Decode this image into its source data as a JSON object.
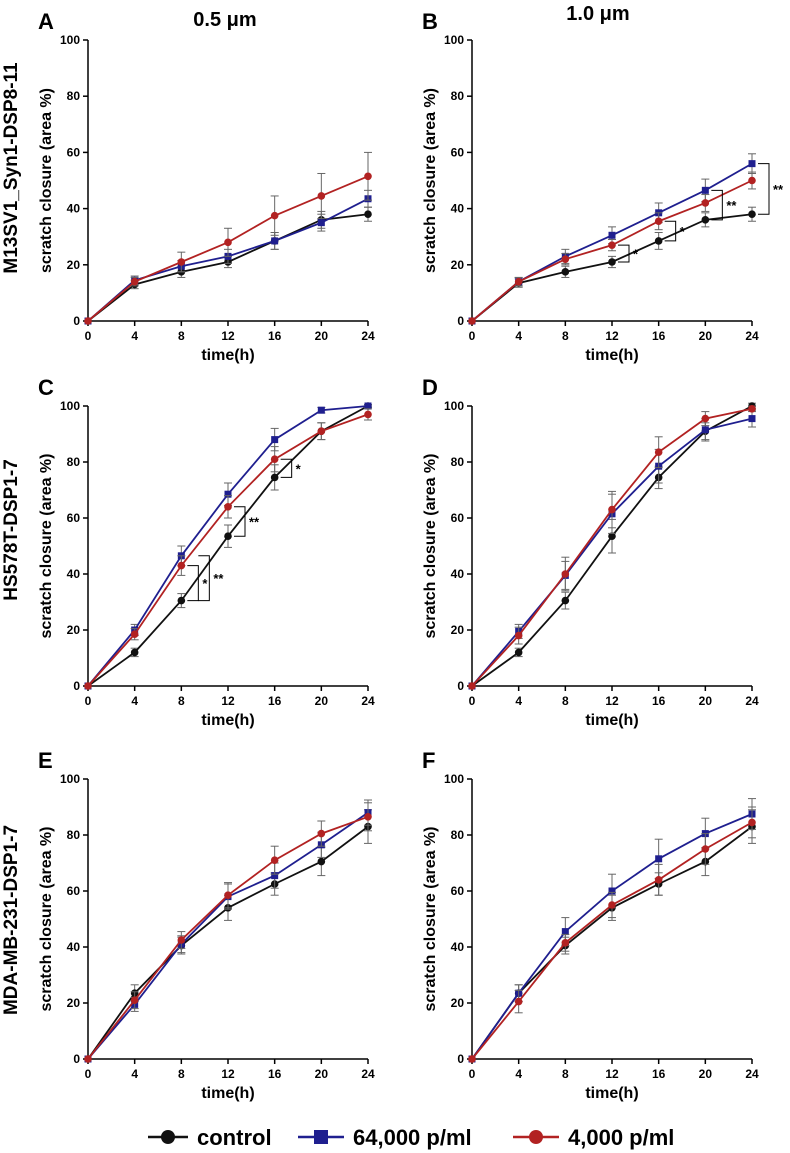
{
  "columns": [
    "0.5 μm",
    "1.0 μm"
  ],
  "rows": [
    "M13SV1_Syn1-DSP8-11",
    "HS578T-DSP1-7",
    "MDA-MB-231-DSP1-7"
  ],
  "legend": [
    {
      "name": "control",
      "color": "#111111",
      "marker": "circle"
    },
    {
      "name": "64,000 p/ml",
      "color": "#1f1f8f",
      "marker": "square"
    },
    {
      "name": "4,000 p/ml",
      "color": "#b22222",
      "marker": "circle"
    }
  ],
  "chart_data": [
    {
      "panel": "A",
      "type": "line",
      "x": [
        0,
        4,
        8,
        12,
        16,
        20,
        24
      ],
      "xlabel": "time(h)",
      "ylabel": "scratch closure (area %)",
      "ylim": [
        0,
        100
      ],
      "yticks": [
        0,
        20,
        40,
        60,
        80,
        100
      ],
      "series": [
        {
          "name": "control",
          "values": [
            0,
            13,
            17.5,
            21,
            28.5,
            36,
            38
          ],
          "err": [
            0,
            1.5,
            2,
            2,
            3,
            3,
            2.5
          ]
        },
        {
          "name": "64,000 p/ml",
          "values": [
            0,
            14.5,
            19.5,
            23,
            28.5,
            35,
            43.5
          ],
          "err": [
            0,
            1.5,
            2,
            2.5,
            3,
            3,
            3
          ]
        },
        {
          "name": "4,000 p/ml",
          "values": [
            0,
            14,
            21,
            28,
            37.5,
            44.5,
            51.5
          ],
          "err": [
            0,
            1.5,
            3.5,
            5,
            7,
            8,
            8.5
          ]
        }
      ],
      "annotations": []
    },
    {
      "panel": "B",
      "type": "line",
      "x": [
        0,
        4,
        8,
        12,
        16,
        20,
        24
      ],
      "xlabel": "time(h)",
      "ylabel": "scratch closure (area %)",
      "ylim": [
        0,
        100
      ],
      "yticks": [
        0,
        20,
        40,
        60,
        80,
        100
      ],
      "series": [
        {
          "name": "control",
          "values": [
            0,
            13.5,
            17.5,
            21,
            28.5,
            36,
            38
          ],
          "err": [
            0,
            1.5,
            2,
            2,
            3,
            2.5,
            2.5
          ]
        },
        {
          "name": "64,000 p/ml",
          "values": [
            0,
            14,
            23,
            30.5,
            38.5,
            46.5,
            56
          ],
          "err": [
            0,
            1.5,
            2.5,
            3,
            3.5,
            4,
            3.5
          ]
        },
        {
          "name": "4,000 p/ml",
          "values": [
            0,
            14,
            22,
            27,
            35.5,
            42,
            50
          ],
          "err": [
            0,
            1.5,
            2,
            2,
            3,
            3,
            3
          ]
        }
      ],
      "annotations": [
        {
          "x": 12,
          "from": "control",
          "to": "4,000 p/ml",
          "label": "*"
        },
        {
          "x": 16,
          "from": "control",
          "to": "4,000 p/ml",
          "label": "*"
        },
        {
          "x": 20,
          "from": "control",
          "to": "64,000 p/ml",
          "label": "**"
        },
        {
          "x": 24,
          "from": "control",
          "to": "64,000 p/ml",
          "label": "**"
        }
      ]
    },
    {
      "panel": "C",
      "type": "line",
      "x": [
        0,
        4,
        8,
        12,
        16,
        20,
        24
      ],
      "xlabel": "time(h)",
      "ylabel": "scratch closure (area %)",
      "ylim": [
        0,
        100
      ],
      "yticks": [
        0,
        20,
        40,
        60,
        80,
        100
      ],
      "series": [
        {
          "name": "control",
          "values": [
            0,
            12,
            30.5,
            53.5,
            74.5,
            91,
            100
          ],
          "err": [
            0,
            1.5,
            2.5,
            4,
            4.5,
            3,
            0.5
          ]
        },
        {
          "name": "64,000 p/ml",
          "values": [
            0,
            20,
            46.5,
            68.5,
            88,
            98.5,
            100
          ],
          "err": [
            0,
            2,
            3.5,
            4,
            4,
            1,
            0.5
          ]
        },
        {
          "name": "4,000 p/ml",
          "values": [
            0,
            18.5,
            43,
            64,
            81,
            91,
            97
          ],
          "err": [
            0,
            2,
            3.5,
            4,
            4.5,
            3,
            2
          ]
        }
      ],
      "annotations": [
        {
          "x": 8,
          "from": "control",
          "to": "4,000 p/ml",
          "label": "*"
        },
        {
          "x": 8,
          "from": "control",
          "to": "64,000 p/ml",
          "label": "**"
        },
        {
          "x": 12,
          "from": "control",
          "to": "4,000 p/ml",
          "label": "**"
        },
        {
          "x": 16,
          "from": "control",
          "to": "4,000 p/ml",
          "label": "*"
        }
      ]
    },
    {
      "panel": "D",
      "type": "line",
      "x": [
        0,
        4,
        8,
        12,
        16,
        20,
        24
      ],
      "xlabel": "time(h)",
      "ylabel": "scratch closure (area %)",
      "ylim": [
        0,
        100
      ],
      "yticks": [
        0,
        20,
        40,
        60,
        80,
        100
      ],
      "series": [
        {
          "name": "control",
          "values": [
            0,
            12,
            30.5,
            53.5,
            74.5,
            91,
            100
          ],
          "err": [
            0,
            1.5,
            3,
            6,
            4,
            3,
            1
          ]
        },
        {
          "name": "64,000 p/ml",
          "values": [
            0,
            19.5,
            39.5,
            61.5,
            78.5,
            91.5,
            95.5
          ],
          "err": [
            0,
            2.5,
            5,
            7,
            6,
            4,
            3
          ]
        },
        {
          "name": "4,000 p/ml",
          "values": [
            0,
            18,
            40,
            63,
            83.5,
            95.5,
            99
          ],
          "err": [
            0,
            3,
            6,
            6.5,
            5.5,
            2.5,
            1
          ]
        }
      ],
      "annotations": []
    },
    {
      "panel": "E",
      "type": "line",
      "x": [
        0,
        4,
        8,
        12,
        16,
        20,
        24
      ],
      "xlabel": "time(h)",
      "ylabel": "scratch closure (area %)",
      "ylim": [
        0,
        100
      ],
      "yticks": [
        0,
        20,
        40,
        60,
        80,
        100
      ],
      "series": [
        {
          "name": "control",
          "values": [
            0,
            23.5,
            40.5,
            54,
            62.5,
            70.5,
            83
          ],
          "err": [
            0,
            3,
            3,
            4.5,
            4,
            5,
            6
          ]
        },
        {
          "name": "64,000 p/ml",
          "values": [
            0,
            19.5,
            41,
            58,
            65.5,
            76.5,
            88
          ],
          "err": [
            0,
            2.5,
            3,
            4.5,
            4.5,
            4.5,
            4.5
          ]
        },
        {
          "name": "4,000 p/ml",
          "values": [
            0,
            21,
            42.5,
            58.5,
            71,
            80.5,
            86.5
          ],
          "err": [
            0,
            3,
            3,
            4.5,
            5,
            4.5,
            5
          ]
        }
      ],
      "annotations": []
    },
    {
      "panel": "F",
      "type": "line",
      "x": [
        0,
        4,
        8,
        12,
        16,
        20,
        24
      ],
      "xlabel": "time(h)",
      "ylabel": "scratch closure (area %)",
      "ylim": [
        0,
        100
      ],
      "yticks": [
        0,
        20,
        40,
        60,
        80,
        100
      ],
      "series": [
        {
          "name": "control",
          "values": [
            0,
            23.5,
            40.5,
            54,
            62.5,
            70.5,
            83
          ],
          "err": [
            0,
            3,
            3,
            4.5,
            4,
            5,
            6
          ]
        },
        {
          "name": "64,000 p/ml",
          "values": [
            0,
            23.5,
            45.5,
            60,
            71.5,
            80.5,
            87.5
          ],
          "err": [
            0,
            3,
            5,
            6,
            7,
            5.5,
            5.5
          ]
        },
        {
          "name": "4,000 p/ml",
          "values": [
            0,
            20.5,
            41.5,
            55,
            64,
            75,
            84.5
          ],
          "err": [
            0,
            4,
            3,
            4.5,
            5.5,
            5.5,
            5.5
          ]
        }
      ],
      "annotations": []
    }
  ]
}
